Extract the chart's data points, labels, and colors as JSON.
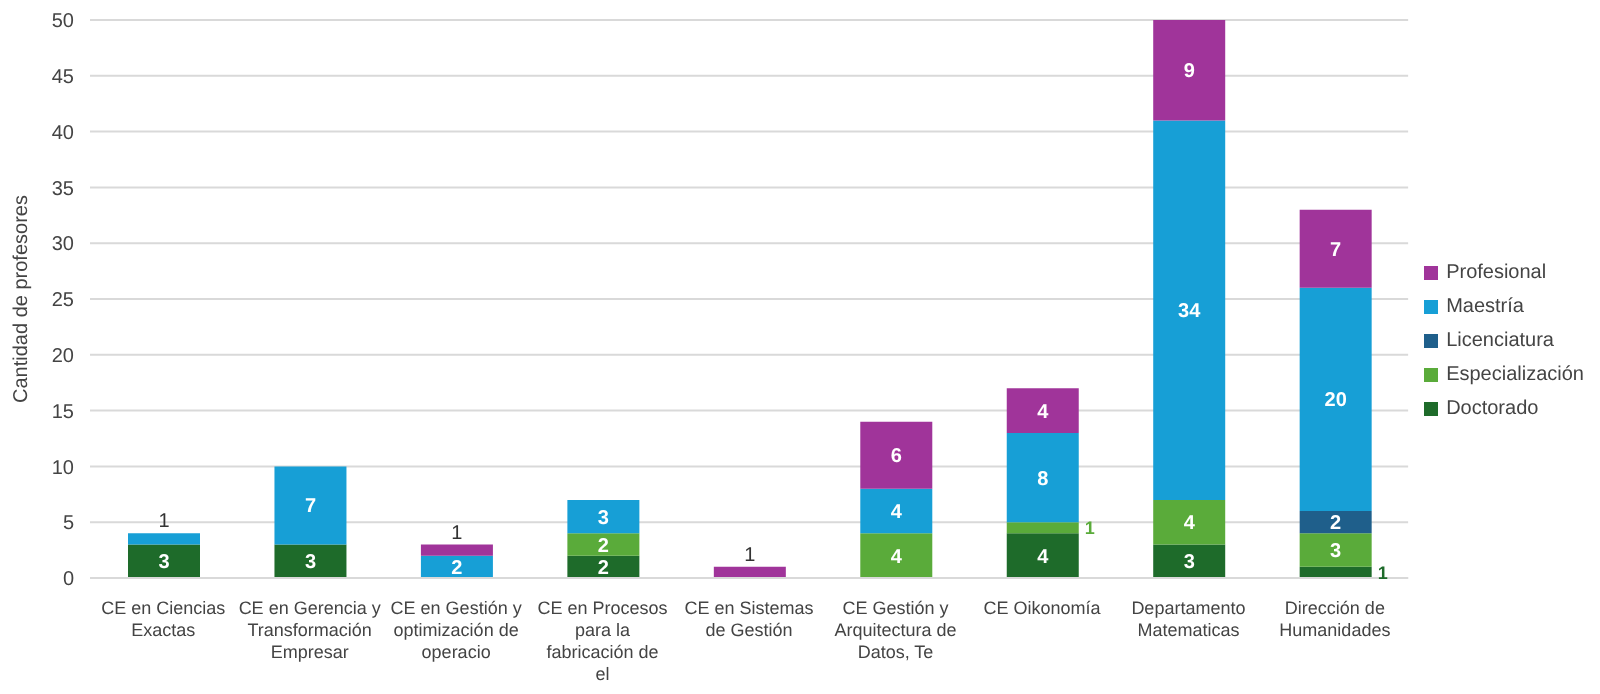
{
  "chart_data": {
    "type": "bar",
    "stacked": true,
    "ylabel": "Cantidad de profesores",
    "categories": [
      "CE en Ciencias Exactas",
      "CE en Gerencia y Transformación Empresar",
      "CE en Gestión y optimización de operacio",
      "CE en Procesos para la fabricación de el",
      "CE en Sistemas de Gestión",
      "CE Gestión y Arquitectura de Datos, Te",
      "CE Oikonomía",
      "Departamento Matematicas",
      "Dirección de Humanidades"
    ],
    "series": [
      {
        "name": "Doctorado",
        "color": "#1e6b2a",
        "values": [
          3,
          3,
          null,
          2,
          null,
          null,
          4,
          3,
          1
        ]
      },
      {
        "name": "Especialización",
        "color": "#5aab3a",
        "values": [
          null,
          null,
          null,
          2,
          null,
          4,
          1,
          4,
          3
        ]
      },
      {
        "name": "Licenciatura",
        "color": "#1f5f8b",
        "values": [
          null,
          null,
          null,
          null,
          null,
          null,
          null,
          null,
          2
        ]
      },
      {
        "name": "Maestría",
        "color": "#179fd6",
        "values": [
          1,
          7,
          2,
          3,
          null,
          4,
          8,
          34,
          20
        ]
      },
      {
        "name": "Profesional",
        "color": "#a0349a",
        "values": [
          null,
          null,
          1,
          null,
          1,
          6,
          4,
          9,
          7
        ]
      }
    ],
    "ylim": [
      0,
      50
    ],
    "yticks": [
      0,
      5,
      10,
      15,
      20,
      25,
      30,
      35,
      40,
      45,
      50
    ],
    "grid": "y",
    "legend": "right",
    "data_labels": true
  }
}
